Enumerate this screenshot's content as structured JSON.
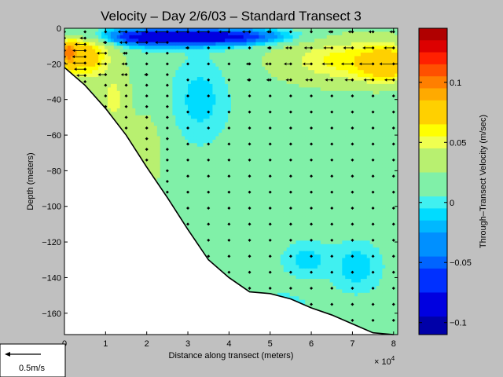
{
  "chart_data": {
    "type": "heatmap",
    "title": "Velocity – Day 2/6/03 – Standard Transect 3",
    "xlabel": "Distance along transect (meters)",
    "ylabel": "Depth (meters)",
    "x_multiplier_label": "× 10",
    "x_multiplier_exp": "4",
    "xlim": [
      0,
      8.1
    ],
    "ylim": [
      -172,
      0
    ],
    "x_ticks": [
      0,
      1,
      2,
      3,
      4,
      5,
      6,
      7,
      8
    ],
    "y_ticks": [
      0,
      -20,
      -40,
      -60,
      -80,
      -100,
      -120,
      -140,
      -160
    ],
    "colorbar": {
      "label": "Through–Transect Velocity (m/sec)",
      "range": [
        -0.11,
        0.145
      ],
      "ticks": [
        0.1,
        0.05,
        0,
        -0.05,
        -0.1
      ],
      "tick_labels": [
        "0.1",
        "0.05",
        "0",
        "−0.05",
        "−0.1"
      ],
      "bands": [
        {
          "from": 0.135,
          "to": 0.145,
          "color": "#b00000"
        },
        {
          "from": 0.125,
          "to": 0.135,
          "color": "#dd0000"
        },
        {
          "from": 0.115,
          "to": 0.125,
          "color": "#ff2000"
        },
        {
          "from": 0.105,
          "to": 0.115,
          "color": "#ff5000"
        },
        {
          "from": 0.095,
          "to": 0.105,
          "color": "#ff7f00"
        },
        {
          "from": 0.085,
          "to": 0.095,
          "color": "#ffaa00"
        },
        {
          "from": 0.065,
          "to": 0.085,
          "color": "#ffd000"
        },
        {
          "from": 0.055,
          "to": 0.065,
          "color": "#ffff00"
        },
        {
          "from": 0.045,
          "to": 0.055,
          "color": "#f0ff50"
        },
        {
          "from": 0.025,
          "to": 0.045,
          "color": "#b8f070"
        },
        {
          "from": 0.005,
          "to": 0.025,
          "color": "#80f0a8"
        },
        {
          "from": -0.005,
          "to": 0.005,
          "color": "#40f0f0"
        },
        {
          "from": -0.015,
          "to": -0.005,
          "color": "#00dcff"
        },
        {
          "from": -0.025,
          "to": -0.015,
          "color": "#00b8ff"
        },
        {
          "from": -0.045,
          "to": -0.025,
          "color": "#0090ff"
        },
        {
          "from": -0.055,
          "to": -0.045,
          "color": "#0064ff"
        },
        {
          "from": -0.075,
          "to": -0.055,
          "color": "#0030ff"
        },
        {
          "from": -0.095,
          "to": -0.075,
          "color": "#0000e0"
        },
        {
          "from": -0.11,
          "to": -0.095,
          "color": "#0000a8"
        }
      ]
    },
    "bathymetry": [
      {
        "x": 0,
        "depth": -22
      },
      {
        "x": 0.5,
        "depth": -32
      },
      {
        "x": 1.0,
        "depth": -45
      },
      {
        "x": 1.5,
        "depth": -60
      },
      {
        "x": 2.0,
        "depth": -78
      },
      {
        "x": 2.5,
        "depth": -95
      },
      {
        "x": 3.0,
        "depth": -113
      },
      {
        "x": 3.5,
        "depth": -130
      },
      {
        "x": 4.0,
        "depth": -140
      },
      {
        "x": 4.5,
        "depth": -148
      },
      {
        "x": 5.0,
        "depth": -149
      },
      {
        "x": 5.5,
        "depth": -152
      },
      {
        "x": 6.0,
        "depth": -157
      },
      {
        "x": 6.5,
        "depth": -161
      },
      {
        "x": 7.0,
        "depth": -166
      },
      {
        "x": 7.5,
        "depth": -171
      },
      {
        "x": 8.0,
        "depth": -172
      }
    ],
    "features": [
      {
        "kind": "background",
        "value": 0.012
      },
      {
        "kind": "blob",
        "x": 2.5,
        "depth": -5,
        "rx": 2.6,
        "ry": 5,
        "value": -0.09
      },
      {
        "kind": "blob",
        "x": 3.4,
        "depth": -5,
        "rx": 1.6,
        "ry": 3.5,
        "value": -0.1
      },
      {
        "kind": "blob",
        "x": 0.15,
        "depth": -14,
        "rx": 0.3,
        "ry": 9,
        "value": 0.13
      },
      {
        "kind": "blob",
        "x": 0.6,
        "depth": -16,
        "rx": 0.6,
        "ry": 14,
        "value": 0.075
      },
      {
        "kind": "blob",
        "x": 6.8,
        "depth": -18,
        "rx": 1.8,
        "ry": 15,
        "value": 0.058
      },
      {
        "kind": "blob",
        "x": 7.8,
        "depth": -20,
        "rx": 0.7,
        "ry": 10,
        "value": 0.085
      },
      {
        "kind": "blob",
        "x": 1.2,
        "depth": -40,
        "rx": 0.4,
        "ry": 22,
        "value": 0.05
      },
      {
        "kind": "blob",
        "x": 2.0,
        "depth": -70,
        "rx": 0.5,
        "ry": 30,
        "value": 0.035
      },
      {
        "kind": "blob",
        "x": 3.3,
        "depth": -40,
        "rx": 0.7,
        "ry": 24,
        "value": -0.01
      },
      {
        "kind": "blob",
        "x": 5.9,
        "depth": -130,
        "rx": 0.6,
        "ry": 10,
        "value": -0.01
      },
      {
        "kind": "blob",
        "x": 7.1,
        "depth": -134,
        "rx": 0.6,
        "ry": 14,
        "value": -0.012
      },
      {
        "kind": "blob",
        "x": 5.3,
        "depth": -158,
        "rx": 0.7,
        "ry": 10,
        "value": -0.003
      }
    ],
    "profile_x": [
      0,
      0.5,
      1.0,
      1.5,
      2.0,
      2.5,
      3.0,
      3.5,
      4.0,
      4.5,
      5.0,
      5.5,
      6.0,
      6.5,
      7.0,
      7.5,
      8.0
    ],
    "scale_arrow": {
      "label": "0.5m/s",
      "speed": 0.5
    }
  }
}
